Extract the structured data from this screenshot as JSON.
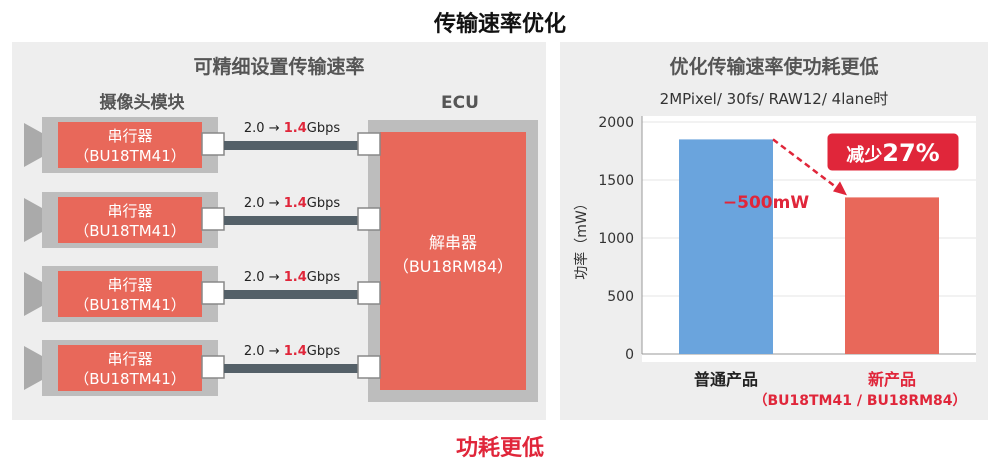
{
  "title": "传输速率优化",
  "footer": "功耗更低",
  "left_panel": {
    "title": "可精细设置传输速率",
    "camera_label": "摄像头模块",
    "ecu_label": "ECU",
    "serializers": [
      {
        "name": "串行器",
        "part": "（BU18TM41）",
        "rate_from": "2.0",
        "rate_to": "1.4",
        "unit": "Gbps"
      },
      {
        "name": "串行器",
        "part": "（BU18TM41）",
        "rate_from": "2.0",
        "rate_to": "1.4",
        "unit": "Gbps"
      },
      {
        "name": "串行器",
        "part": "（BU18TM41）",
        "rate_from": "2.0",
        "rate_to": "1.4",
        "unit": "Gbps"
      },
      {
        "name": "串行器",
        "part": "（BU18TM41）",
        "rate_from": "2.0",
        "rate_to": "1.4",
        "unit": "Gbps"
      }
    ],
    "deserializer": {
      "name": "解串器",
      "part": "（BU18RM84）"
    }
  },
  "right_panel": {
    "title": "优化传输速率使功耗更低",
    "subtitle": "2MPixel/ 30fs/ RAW12/ 4lane时"
  },
  "colors": {
    "serializer": "#e8685a",
    "blue_bar": "#6aa4dd",
    "red_bar": "#e8685a",
    "accent_red": "#e0263a",
    "camera_gray": "#aaaaaa",
    "cable": "#546068"
  },
  "chart_data": {
    "type": "bar",
    "ylabel": "功率（mW）",
    "ylim": [
      0,
      2000
    ],
    "yticks": [
      0,
      500,
      1000,
      1500,
      2000
    ],
    "categories": [
      "普通产品",
      "新产品"
    ],
    "category_sublabels": [
      "",
      "（BU18TM41 / BU18RM84）"
    ],
    "values": [
      1850,
      1350
    ],
    "bar_colors": [
      "#6aa4dd",
      "#e8685a"
    ],
    "annotations": {
      "difference": "−500mW",
      "badge_prefix": "减少",
      "badge_value": "27%"
    }
  }
}
